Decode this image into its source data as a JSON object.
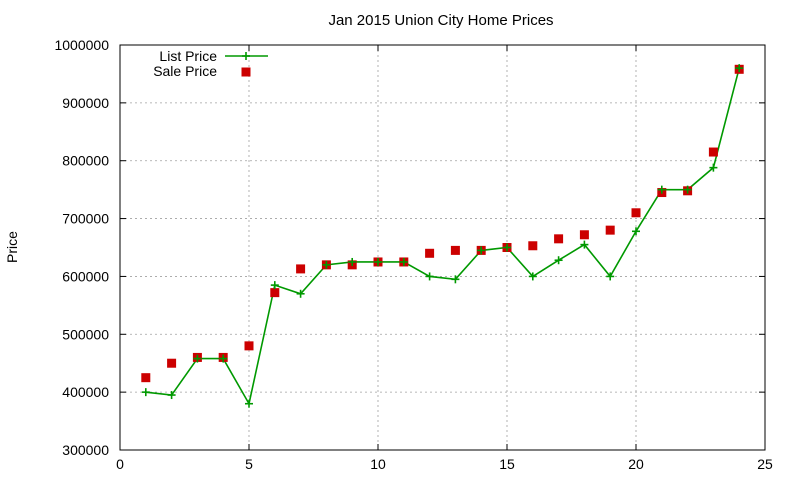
{
  "chart_data": {
    "type": "line",
    "title": "Jan 2015 Union City Home Prices",
    "xlabel": "",
    "ylabel": "Price",
    "xlim": [
      0,
      25
    ],
    "ylim": [
      300000,
      1000000
    ],
    "grid": true,
    "legend_position": "top-left",
    "x_ticks": [
      0,
      5,
      10,
      15,
      20,
      25
    ],
    "y_ticks": [
      300000,
      400000,
      500000,
      600000,
      700000,
      800000,
      900000,
      1000000
    ],
    "x_tick_labels": [
      "0",
      "5",
      "10",
      "15",
      "20",
      "25"
    ],
    "y_tick_labels": [
      "300000",
      "400000",
      "500000",
      "600000",
      "700000",
      "800000",
      "900000",
      "1000000"
    ],
    "x": [
      1,
      2,
      3,
      4,
      5,
      6,
      7,
      8,
      9,
      10,
      11,
      12,
      13,
      14,
      15,
      16,
      17,
      18,
      19,
      20,
      21,
      22,
      23,
      24
    ],
    "series": [
      {
        "name": "List Price",
        "style": "line-with-plus-markers",
        "color": "#009900",
        "values": [
          400000,
          395000,
          458000,
          458000,
          380000,
          585000,
          570000,
          620000,
          625000,
          625000,
          625000,
          600000,
          595000,
          645000,
          650000,
          600000,
          628000,
          655000,
          600000,
          678000,
          750000,
          750000,
          788000,
          960000
        ]
      },
      {
        "name": "Sale Price",
        "style": "square-markers",
        "color": "#cc0000",
        "values": [
          425000,
          450000,
          460000,
          460000,
          480000,
          572000,
          613000,
          620000,
          620000,
          625000,
          625000,
          640000,
          645000,
          645000,
          650000,
          653000,
          665000,
          672000,
          680000,
          710000,
          745000,
          748000,
          815000,
          958000
        ]
      }
    ]
  }
}
